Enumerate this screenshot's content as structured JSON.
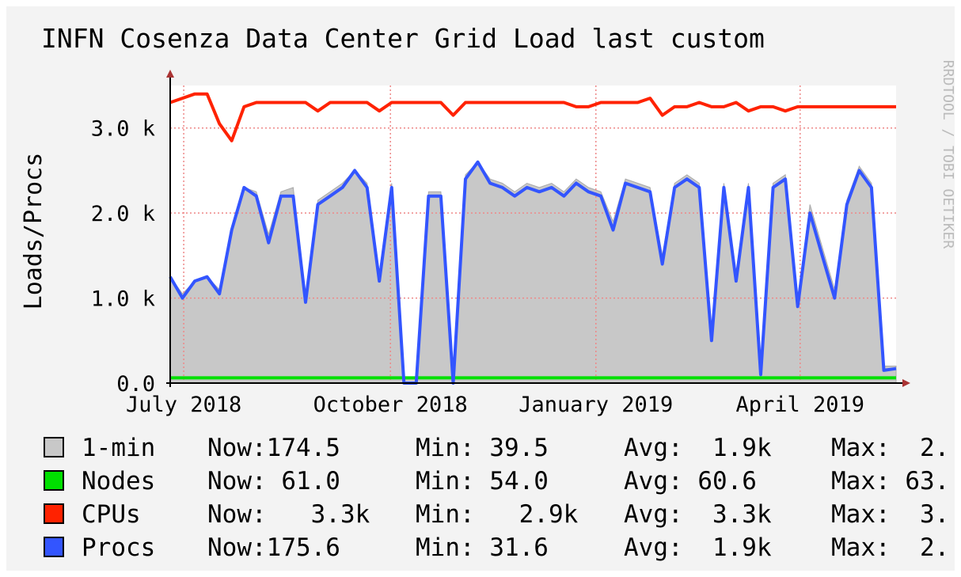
{
  "chart_data": {
    "type": "area_line",
    "title": "INFN Cosenza Data Center Grid Load last custom",
    "y_label": "Loads/Procs",
    "watermark": "RRDTOOL / TOBI OETIKER",
    "xlim": [
      0,
      59
    ],
    "xticks": [
      {
        "value": 1.1,
        "label": "July 2018"
      },
      {
        "value": 17.9,
        "label": "October 2018"
      },
      {
        "value": 34.6,
        "label": "January 2019"
      },
      {
        "value": 51.2,
        "label": "April 2019"
      }
    ],
    "ylim": [
      0,
      3500
    ],
    "yticks": [
      {
        "value": 0,
        "label": "0.0"
      },
      {
        "value": 1000,
        "label": "1.0 k"
      },
      {
        "value": 2000,
        "label": "2.0 k"
      },
      {
        "value": 3000,
        "label": "3.0 k"
      }
    ],
    "grid": true,
    "series": [
      {
        "name": "1-min",
        "color": "#c8c8c8",
        "kind": "area",
        "values": [
          1250,
          1050,
          1200,
          1250,
          1100,
          1800,
          2300,
          2250,
          1750,
          2250,
          2300,
          1000,
          2150,
          2250,
          2350,
          2500,
          2350,
          1300,
          2350,
          50,
          50,
          2250,
          2250,
          50,
          2450,
          2600,
          2400,
          2350,
          2250,
          2350,
          2300,
          2350,
          2250,
          2400,
          2300,
          2250,
          1900,
          2400,
          2350,
          2300,
          1500,
          2350,
          2450,
          2350,
          600,
          2350,
          1300,
          2350,
          150,
          2350,
          2450,
          1000,
          2100,
          1600,
          1100,
          2150,
          2550,
          2350,
          200,
          200
        ],
        "stats": [
          "Now:174.5",
          "Min: 39.5",
          "Avg:  1.9k",
          "Max:  2."
        ]
      },
      {
        "name": "Nodes",
        "color": "#00e000",
        "kind": "line",
        "values": [
          61,
          61,
          61,
          61,
          61,
          61,
          61,
          61,
          61,
          61,
          61,
          61,
          61,
          61,
          61,
          61,
          61,
          61,
          61,
          61,
          61,
          61,
          61,
          61,
          61,
          61,
          61,
          61,
          61,
          61,
          61,
          61,
          61,
          61,
          61,
          61,
          61,
          61,
          61,
          61,
          61,
          61,
          61,
          61,
          61,
          61,
          61,
          61,
          61,
          61,
          61,
          61,
          61,
          61,
          61,
          61,
          61,
          61,
          61,
          61
        ],
        "stats": [
          "Now: 61.0",
          "Min: 54.0",
          "Avg: 60.6",
          "Max: 63."
        ]
      },
      {
        "name": "CPUs",
        "color": "#ff2200",
        "kind": "line",
        "values": [
          3300,
          3350,
          3400,
          3400,
          3050,
          2850,
          3250,
          3300,
          3300,
          3300,
          3300,
          3300,
          3200,
          3300,
          3300,
          3300,
          3300,
          3200,
          3300,
          3300,
          3300,
          3300,
          3300,
          3150,
          3300,
          3300,
          3300,
          3300,
          3300,
          3300,
          3300,
          3300,
          3300,
          3250,
          3250,
          3300,
          3300,
          3300,
          3300,
          3350,
          3150,
          3250,
          3250,
          3300,
          3250,
          3250,
          3300,
          3200,
          3250,
          3250,
          3200,
          3250,
          3250,
          3250,
          3250,
          3250,
          3250,
          3250,
          3250,
          3250
        ],
        "stats": [
          "Now:   3.3k",
          "Min:   2.9k",
          "Avg:  3.3k",
          "Max:  3."
        ]
      },
      {
        "name": "Procs",
        "color": "#3355ff",
        "kind": "line",
        "values": [
          1250,
          1000,
          1200,
          1250,
          1050,
          1800,
          2300,
          2200,
          1650,
          2200,
          2200,
          950,
          2100,
          2200,
          2300,
          2500,
          2300,
          1200,
          2300,
          0,
          0,
          2200,
          2200,
          0,
          2400,
          2600,
          2350,
          2300,
          2200,
          2300,
          2250,
          2300,
          2200,
          2350,
          2250,
          2200,
          1800,
          2350,
          2300,
          2250,
          1400,
          2300,
          2400,
          2300,
          500,
          2300,
          1200,
          2300,
          100,
          2300,
          2400,
          900,
          2000,
          1500,
          1000,
          2100,
          2500,
          2300,
          150,
          170
        ],
        "stats": [
          "Now:175.6",
          "Min: 31.6",
          "Avg:  1.9k",
          "Max:  2."
        ]
      }
    ]
  }
}
